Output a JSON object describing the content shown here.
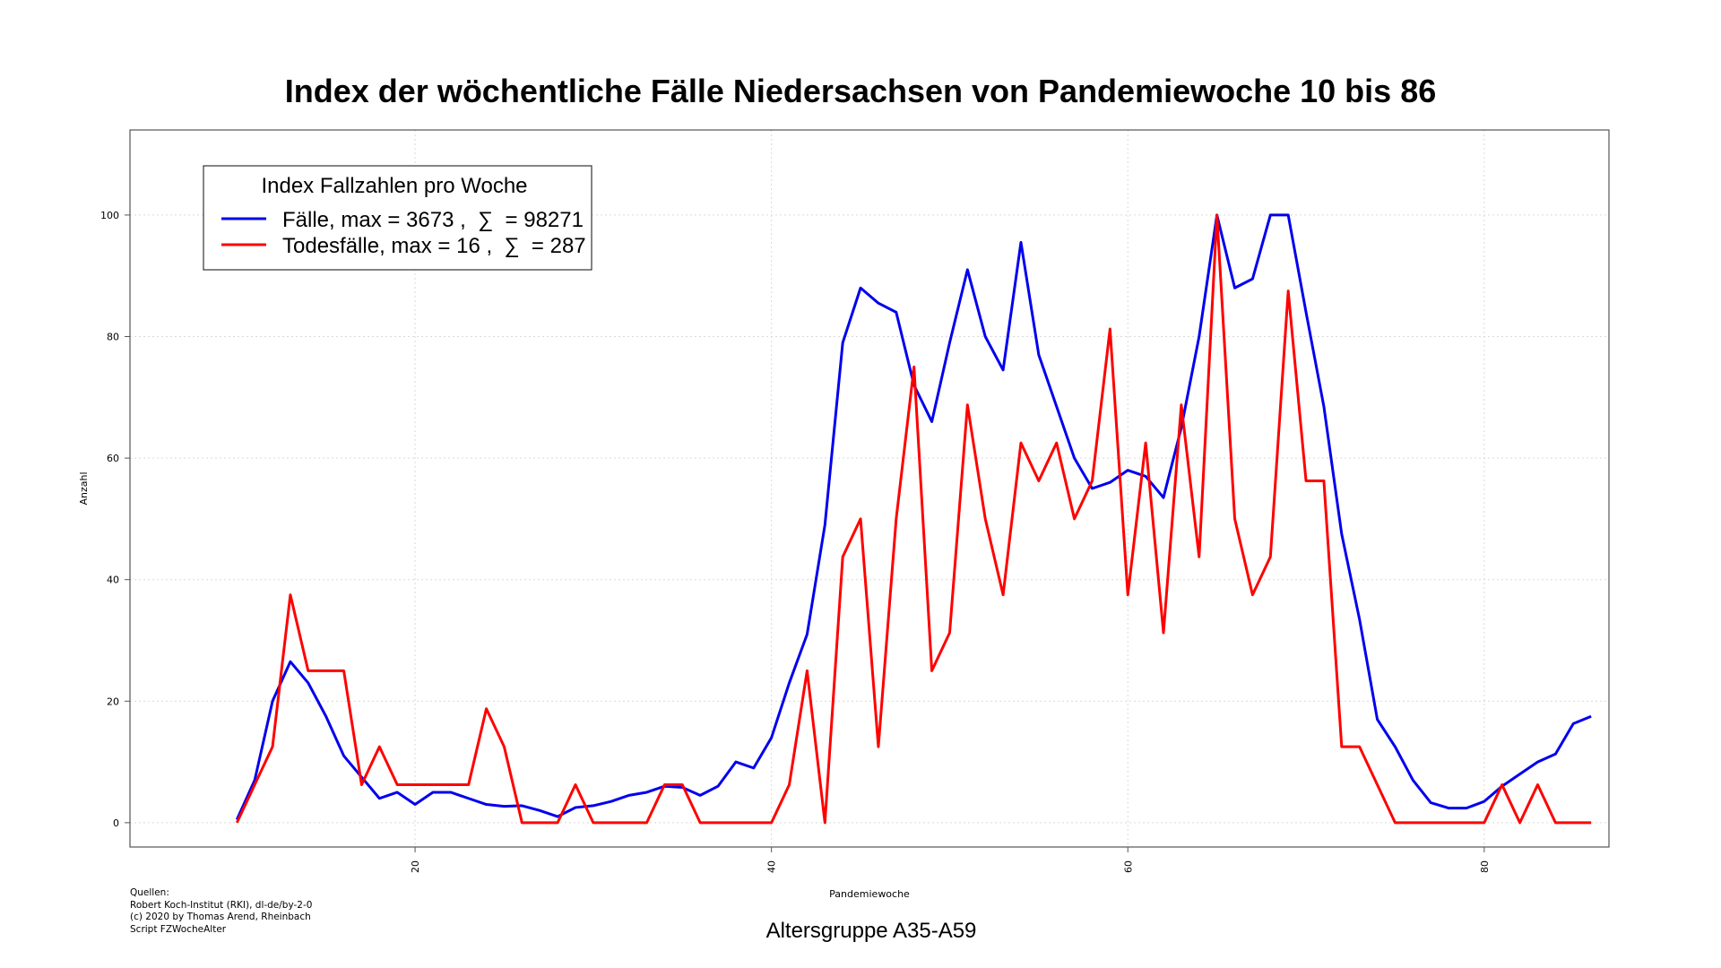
{
  "chart_data": {
    "type": "line",
    "title": "Index der wöchentliche Fälle Niedersachsen von Pandemiewoche 10 bis 86",
    "subtitle": "Altersgruppe A35-A59",
    "xlabel": "Pandemiewoche",
    "ylabel": "Anzahl",
    "xlim": [
      4,
      87
    ],
    "ylim": [
      -4,
      114
    ],
    "xticks": [
      20,
      40,
      60,
      80
    ],
    "yticks": [
      0,
      20,
      40,
      60,
      80,
      100
    ],
    "grid": true,
    "legend_position": "top-left",
    "legend_title": "Index Fallzahlen pro Woche",
    "x": [
      10,
      11,
      12,
      13,
      14,
      15,
      16,
      17,
      18,
      19,
      20,
      21,
      22,
      23,
      24,
      25,
      26,
      27,
      28,
      29,
      30,
      31,
      32,
      33,
      34,
      35,
      36,
      37,
      38,
      39,
      40,
      41,
      42,
      43,
      44,
      45,
      46,
      47,
      48,
      49,
      50,
      51,
      52,
      53,
      54,
      55,
      56,
      57,
      58,
      59,
      60,
      61,
      62,
      63,
      64,
      65,
      66,
      67,
      68,
      69,
      70,
      71,
      72,
      73,
      74,
      75,
      76,
      77,
      78,
      79,
      80,
      81,
      82,
      83,
      84,
      85,
      86
    ],
    "series": [
      {
        "name": "Fälle, max = 3673 ,  ∑  = 98271",
        "color": "#0000ee",
        "values": [
          0.5,
          7,
          20,
          26.5,
          23,
          17.5,
          11,
          7.5,
          4,
          5,
          3,
          5,
          5,
          4,
          3,
          2.7,
          2.8,
          2,
          1,
          2.5,
          2.8,
          3.5,
          4.5,
          5,
          6,
          5.8,
          4.5,
          6,
          10,
          9,
          14,
          23,
          31,
          49,
          79,
          88,
          85.5,
          84,
          72,
          66,
          79,
          91,
          80,
          74.5,
          95.5,
          77,
          68.5,
          60,
          55,
          56,
          58,
          57,
          53.5,
          65,
          80,
          100,
          88,
          89.5,
          100,
          100,
          84,
          68.5,
          47.5,
          33.5,
          17,
          12.5,
          7,
          3.3,
          2.4,
          2.4,
          3.5,
          6,
          8,
          10,
          11.3,
          16.3,
          17.5
        ]
      },
      {
        "name": "Todesfälle, max = 16 ,  ∑  = 287",
        "color": "#ff0000",
        "values": [
          0,
          6.25,
          12.5,
          37.5,
          25,
          25,
          25,
          6.25,
          12.5,
          6.25,
          6.25,
          6.25,
          6.25,
          6.25,
          18.75,
          12.5,
          0,
          0,
          0,
          6.25,
          0,
          0,
          0,
          0,
          6.25,
          6.25,
          0,
          0,
          0,
          0,
          0,
          6.25,
          25,
          0,
          43.75,
          50,
          12.5,
          50,
          75,
          25,
          31.25,
          68.75,
          50,
          37.5,
          62.5,
          56.25,
          62.5,
          50,
          56.25,
          81.25,
          37.5,
          62.5,
          31.25,
          68.75,
          43.75,
          100,
          50,
          37.5,
          43.75,
          87.5,
          56.25,
          56.25,
          12.5,
          12.5,
          6.25,
          0,
          0,
          0,
          0,
          0,
          0,
          6.25,
          0,
          6.25,
          0,
          0,
          0
        ]
      }
    ]
  },
  "sources": {
    "heading": "Quellen:",
    "line1": "Robert Koch-Institut (RKI), dl-de/by-2-0",
    "line2": "(c) 2020 by Thomas Arend, Rheinbach",
    "line3": "Script FZWocheAlter"
  }
}
